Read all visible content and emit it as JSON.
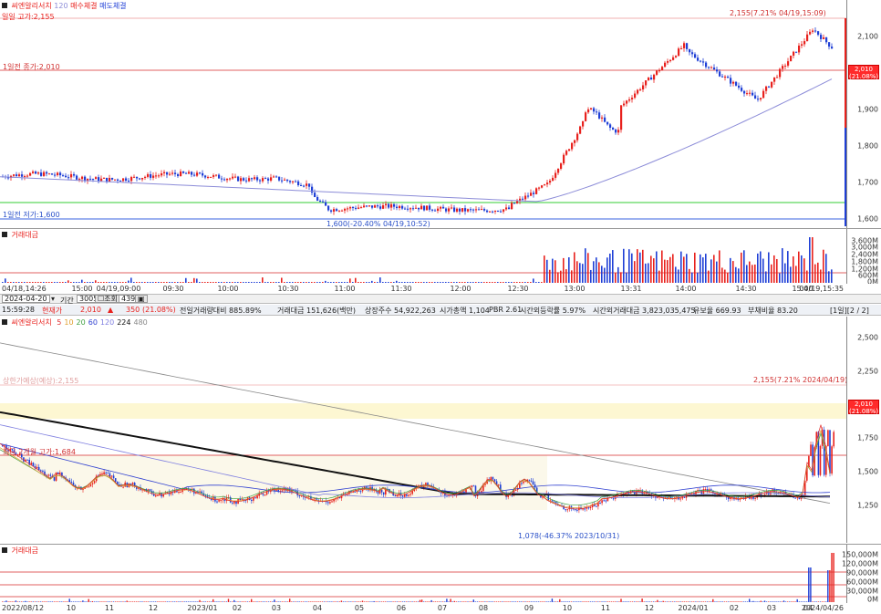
{
  "top_chart": {
    "legend": {
      "name": "씨엔알리서치",
      "ma": "120",
      "buy": "매수체결",
      "sell": "매도체결"
    },
    "legend_line2": "일일 고가:2,155",
    "prev_close_label": "1일전 종가:2,010",
    "prev_low_label": "1일전 저가:1,600",
    "high_annotation": "2,155(7.21% 04/19,15:09)",
    "low_annotation": "1,600(-20.40% 04/19,10:52)",
    "y_ticks": [
      "2,100",
      "2,000",
      "1,900",
      "1,800",
      "1,700",
      "1,600"
    ],
    "price_tag": [
      "2,010",
      "(21.08%)"
    ],
    "volume_label": "거래대금",
    "volume_ticks": [
      "3,600M",
      "3,000M",
      "2,400M",
      "1,800M",
      "1,200M",
      "600M",
      "0M"
    ],
    "x_labels": [
      "04/18,14:26",
      "15:00",
      "04/19,09:00",
      "09:30",
      "10:00",
      "10:30",
      "11:00",
      "11:30",
      "12:00",
      "12:30",
      "13:00",
      "13:31",
      "14:00",
      "14:30",
      "15:00",
      "04/19,15:35"
    ],
    "colors": {
      "up": "#e8211d",
      "down": "#1f3fd6",
      "ma": "#8c8cd8",
      "hline_red": "#e06060",
      "hline_green": "#33cc33",
      "hline_blue": "#3a63e0"
    }
  },
  "toolbar": {
    "date": "2024-04-20",
    "period_label": "기간",
    "period_value": "3005",
    "query_label": "조회",
    "count_value": "439"
  },
  "info_bar": {
    "time": "15:59:28",
    "current_label": "현재가",
    "price": "2,010",
    "change": "350",
    "change_pct": "(21.08%)",
    "volume_ratio": "전일거래량대비 885.89%",
    "amount": "거래대금 151,626(백만)",
    "listed": "상장주수 54,922,263",
    "market_cap": "시가총액 1,104",
    "pbr": "PBR 2.61",
    "foreign": "시간외등락률 5.97%",
    "after_amount": "시간외거래대금 3,823,035,475",
    "float": "유보율 669.93",
    "debt": "부채비율 83.20",
    "page": "[1일][2 / 2]"
  },
  "bottom_chart": {
    "legend": {
      "name": "씨엔알리서치",
      "ma": [
        "5",
        "10",
        "20",
        "60",
        "120",
        "224",
        "480"
      ]
    },
    "upper_limit_label": "상한가예상(예상):2,155",
    "support_label": "최근 2개월 고가:1,684",
    "high_annotation": "2,155(7.21% 2024/04/19)",
    "low_annotation": "1,078(-46.37% 2023/10/31)",
    "y_ticks": [
      "2,500",
      "2,250",
      "2,000",
      "1,750",
      "1,500",
      "1,250"
    ],
    "price_tag": [
      "2,010",
      "(21.08%)"
    ],
    "volume_label": "거래대금",
    "volume_ticks": [
      "150,000M",
      "120,000M",
      "90,000M",
      "60,000M",
      "30,000M",
      "0M"
    ],
    "x_labels": [
      "2022/08/12",
      "10",
      "11",
      "12",
      "2023/01",
      "02",
      "03",
      "04",
      "05",
      "06",
      "07",
      "08",
      "09",
      "10",
      "11",
      "12",
      "2024/01",
      "02",
      "03",
      "04",
      "2024/04/26"
    ],
    "colors": {
      "ma5": "#e03030",
      "ma10": "#e0a030",
      "ma20": "#40a040",
      "ma60": "#3040d0",
      "ma120": "#8080e0",
      "ma224": "#111111",
      "ma480": "#888888"
    }
  }
}
